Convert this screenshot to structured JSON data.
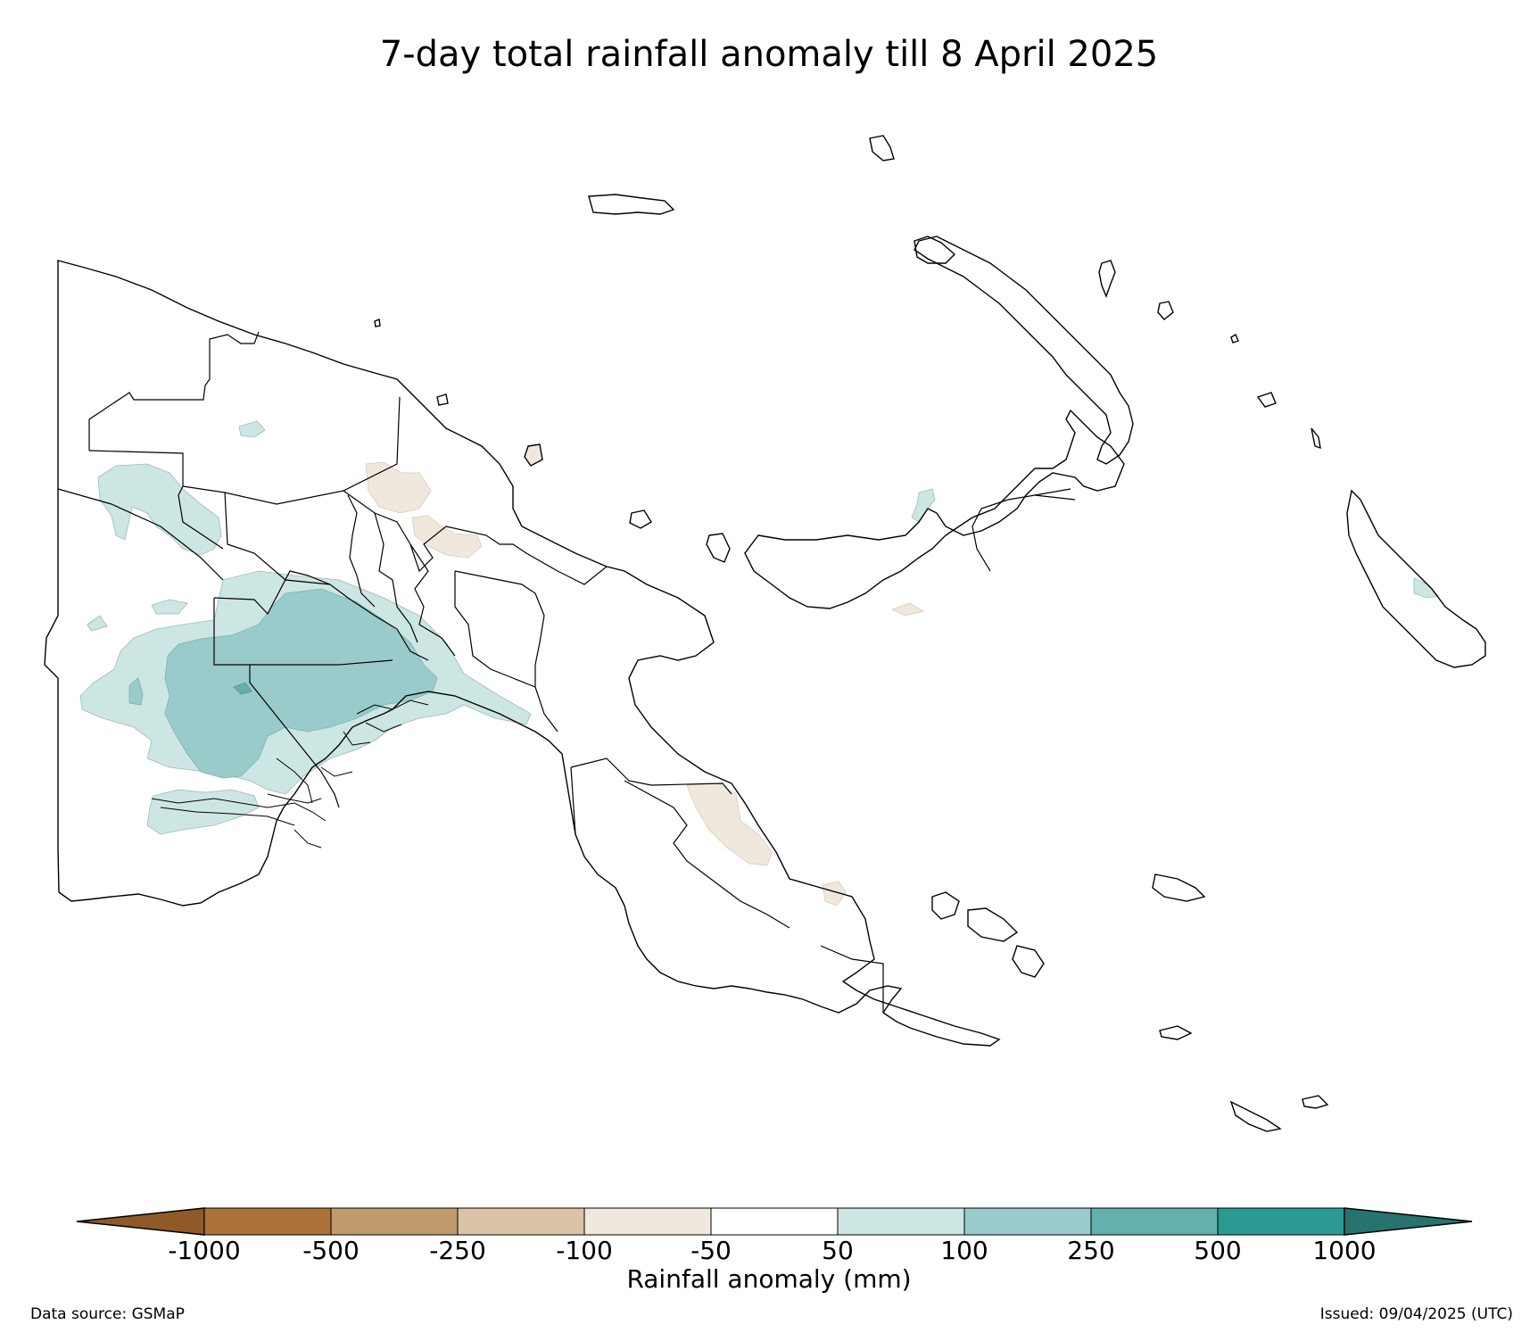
{
  "title": "7-day total rainfall anomaly till 8 April 2025",
  "colorbar": {
    "label": "Rainfall anomaly (mm)",
    "ticks": [
      "-1000",
      "-500",
      "-250",
      "-100",
      "-50",
      "50",
      "100",
      "250",
      "500",
      "1000"
    ],
    "colors": [
      "#8f5a28",
      "#aa7238",
      "#c19a6b",
      "#dbc3a8",
      "#f1e8dd",
      "#ffffff",
      "#cce6e4",
      "#9acbcb",
      "#63b0ae",
      "#2a9a92",
      "#267370"
    ]
  },
  "footer": {
    "data_source": "Data source: GSMaP",
    "issued": "Issued: 09/04/2025 (UTC)"
  }
}
